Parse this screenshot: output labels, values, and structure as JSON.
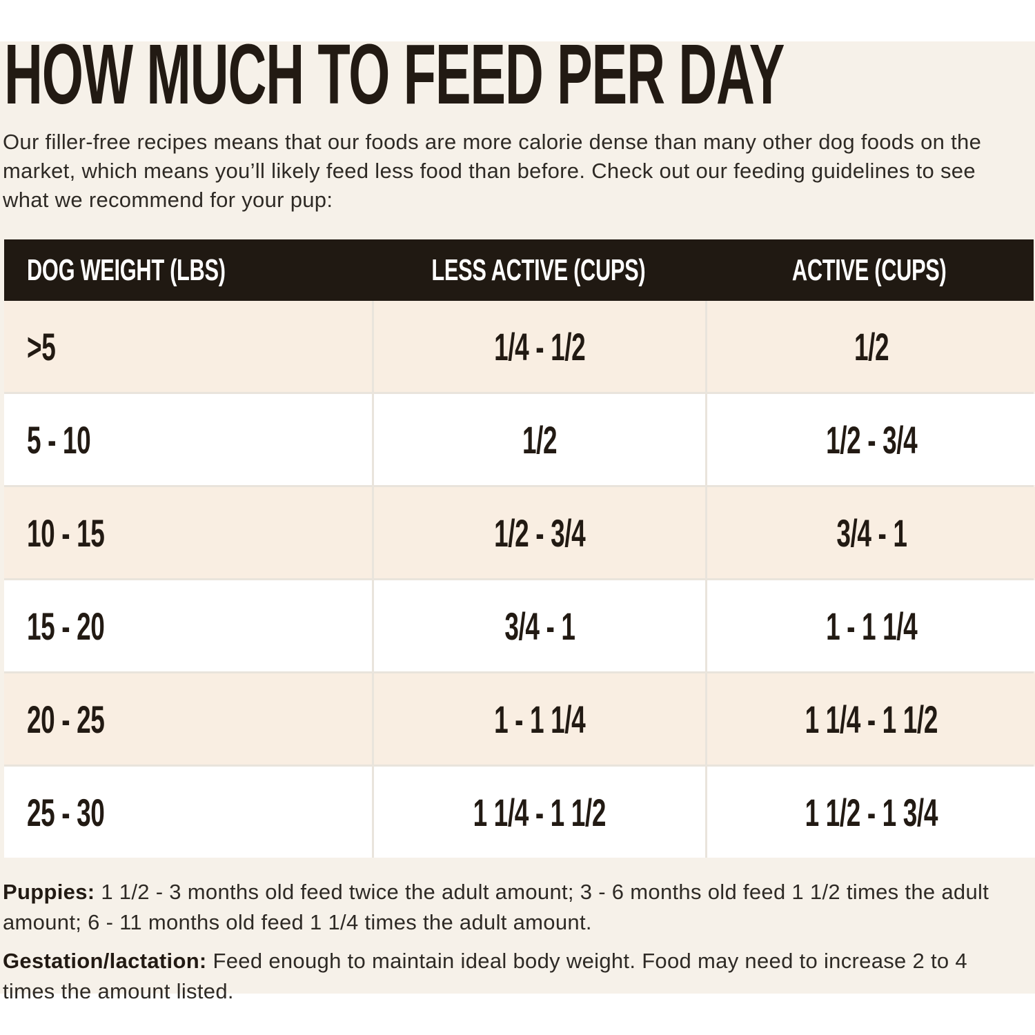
{
  "page": {
    "title": "HOW MUCH TO FEED PER DAY",
    "intro": "Our filler-free recipes means that our foods are more calorie dense than many other dog foods on the market, which means you’ll likely feed less food than before. Check out our feeding guidelines to see what we recommend for your pup:",
    "colors": {
      "background_cream": "#f6f1e9",
      "row_cream": "#f9eee2",
      "row_white": "#ffffff",
      "header_dark": "#201912",
      "text_dark": "#221a13"
    }
  },
  "table": {
    "columns": [
      "DOG WEIGHT (LBS)",
      "LESS ACTIVE (CUPS)",
      "ACTIVE (CUPS)"
    ],
    "rows": [
      {
        "weight": ">5",
        "less_active": "1/4 - 1/2",
        "active": "1/2"
      },
      {
        "weight": "5 - 10",
        "less_active": "1/2",
        "active": "1/2 - 3/4"
      },
      {
        "weight": "10 - 15",
        "less_active": "1/2 - 3/4",
        "active": "3/4 - 1"
      },
      {
        "weight": "15 - 20",
        "less_active": "3/4 - 1",
        "active": "1 - 1 1/4"
      },
      {
        "weight": "20 - 25",
        "less_active": "1 - 1 1/4",
        "active": "1 1/4 - 1 1/2"
      },
      {
        "weight": "25 - 30",
        "less_active": "1 1/4 - 1 1/2",
        "active": "1 1/2 - 1 3/4"
      }
    ]
  },
  "notes": [
    {
      "label": "Puppies:",
      "text": " 1 1/2 - 3 months old feed twice the adult amount; 3 - 6 months old feed 1 1/2 times the adult amount; 6 - 11 months old feed 1 1/4 times the adult amount."
    },
    {
      "label": "Gestation/lactation:",
      "text": " Feed enough to maintain ideal body weight. Food may need to increase 2 to 4 times the amount listed."
    }
  ]
}
